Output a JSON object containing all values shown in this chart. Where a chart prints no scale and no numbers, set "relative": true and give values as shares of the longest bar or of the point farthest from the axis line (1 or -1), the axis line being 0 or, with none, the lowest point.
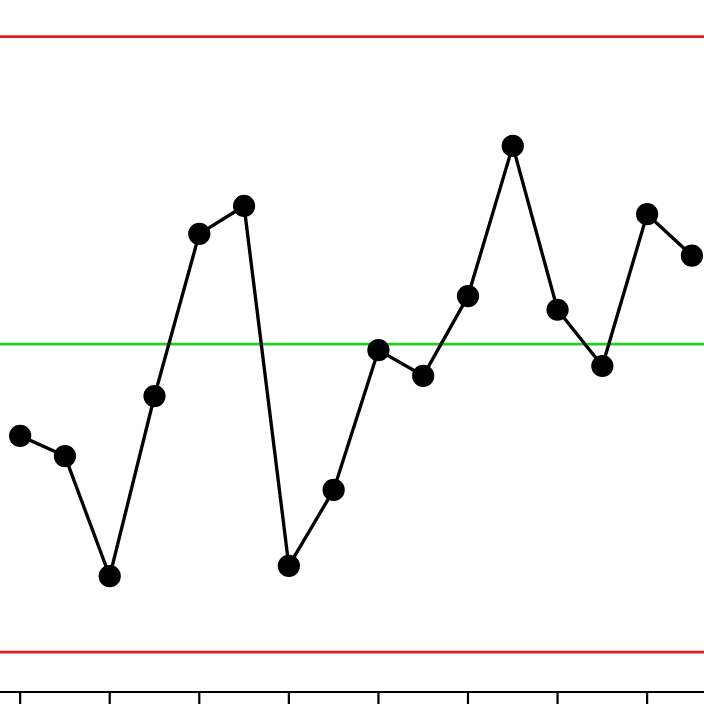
{
  "chart_data": {
    "type": "line",
    "relative": true,
    "marker": "circle",
    "line_style": "solid",
    "grid": false,
    "legend": false,
    "categories": [
      null,
      null,
      null,
      null,
      null,
      null,
      null,
      null,
      null,
      null,
      null,
      null,
      null,
      null,
      null,
      null
    ],
    "series": [
      {
        "color": "#000000",
        "values": [
          0.469,
          0.432,
          0.212,
          0.542,
          0.839,
          0.89,
          0.231,
          0.37,
          0.626,
          0.579,
          0.725,
          1,
          0.7,
          0.597,
          0.875,
          0.799
        ]
      }
    ],
    "ref_lines": [
      {
        "axis": "y",
        "value": 1.2,
        "color": "#e02020",
        "line_style": "solid"
      },
      {
        "axis": "y",
        "value": 0.073,
        "color": "#e02020",
        "line_style": "solid"
      },
      {
        "axis": "y",
        "value": 0.637,
        "color": "#20d020",
        "line_style": "solid"
      }
    ]
  }
}
